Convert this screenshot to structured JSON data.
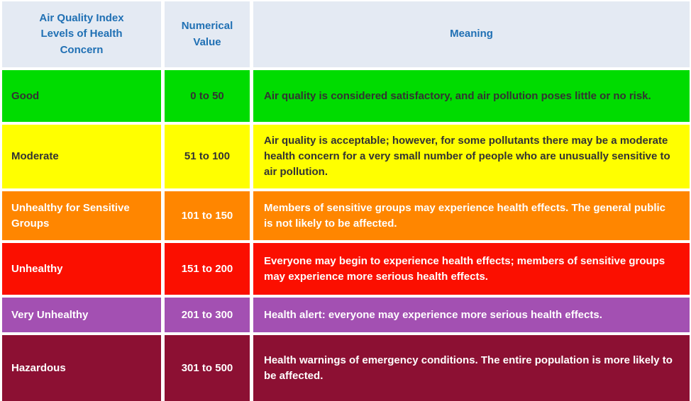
{
  "colors": {
    "page_bg": "#ffffff",
    "header_bg": "#e4eaf3",
    "header_text": "#2070b4",
    "grid_gap": "#ffffff"
  },
  "table": {
    "headers": {
      "level": "Air Quality Index Levels of Health Concern",
      "value": "Numerical Value",
      "meaning": "Meaning"
    },
    "rows": [
      {
        "level": "Good",
        "value": "0 to 50",
        "meaning": "Air quality is considered satisfactory, and air pollution poses little or no risk.",
        "bg": "#00dc00",
        "fg": "#333333"
      },
      {
        "level": "Moderate",
        "value": "51 to 100",
        "meaning": "Air quality is acceptable; however, for some pollutants there may be a moderate health concern for a very small number of people who are unusually sensitive to air pollution.",
        "bg": "#ffff00",
        "fg": "#333333"
      },
      {
        "level": "Unhealthy for Sensitive Groups",
        "value": "101 to 150",
        "meaning": "Members of sensitive groups may experience health effects. The general public is not likely to be affected.",
        "bg": "#ff8600",
        "fg": "#ffffff"
      },
      {
        "level": "Unhealthy",
        "value": "151 to 200",
        "meaning": "Everyone may begin to experience health effects; members of sensitive groups may experience more serious health effects.",
        "bg": "#fb0f00",
        "fg": "#ffffff"
      },
      {
        "level": "Very Unhealthy",
        "value": "201 to 300",
        "meaning": "Health alert: everyone may experience more serious health effects.",
        "bg": "#a350b2",
        "fg": "#ffffff"
      },
      {
        "level": "Hazardous",
        "value": "301 to 500",
        "meaning": "Health warnings of emergency conditions. The entire population is more likely to be affected.",
        "bg": "#8c1033",
        "fg": "#ffffff"
      }
    ]
  }
}
